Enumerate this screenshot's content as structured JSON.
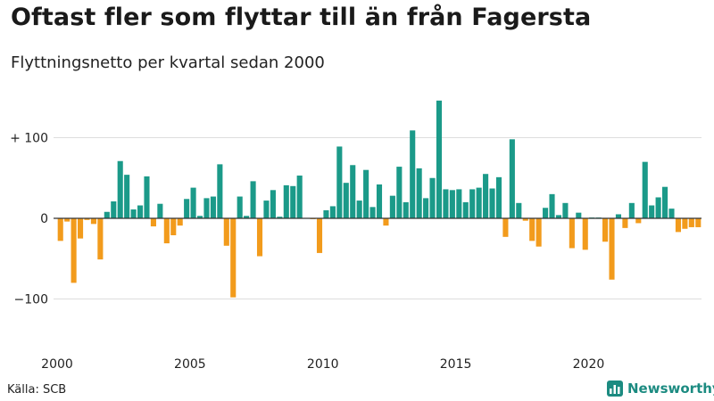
{
  "title": "Oftast fler som flyttar till än från Fagersta",
  "subtitle": "Flyttningsnetto per kvartal sedan 2000",
  "source": "Källa: SCB",
  "brand": "Newsworthy",
  "colors": {
    "positive": "#1b9a89",
    "negative": "#f29b1c",
    "grid": "#dddddd",
    "axis": "#333333"
  },
  "chart_data": {
    "type": "bar",
    "title": "Oftast fler som flyttar till än från Fagersta",
    "subtitle": "Flyttningsnetto per kvartal sedan 2000",
    "xlabel": "",
    "ylabel": "",
    "ylim": [
      -120,
      160
    ],
    "yticks": [
      -100,
      0,
      100
    ],
    "ytick_labels": [
      "−100",
      "0",
      "+ 100"
    ],
    "xticks": [
      "2000",
      "2005",
      "2010",
      "2015",
      "2020"
    ],
    "start_year": 2000,
    "period": "quarter",
    "values": [
      -28,
      -4,
      -80,
      -25,
      -2,
      -7,
      -51,
      8,
      21,
      71,
      54,
      11,
      16,
      52,
      -10,
      18,
      -31,
      -21,
      -9,
      24,
      38,
      3,
      25,
      27,
      67,
      -34,
      -98,
      27,
      3,
      46,
      -47,
      22,
      35,
      2,
      41,
      40,
      53,
      0,
      -1,
      -43,
      10,
      15,
      89,
      44,
      66,
      22,
      60,
      14,
      42,
      -9,
      28,
      64,
      20,
      109,
      62,
      25,
      50,
      146,
      36,
      35,
      36,
      20,
      36,
      38,
      55,
      37,
      51,
      -23,
      98,
      19,
      -3,
      -28,
      -35,
      13,
      30,
      4,
      19,
      -37,
      7,
      -39,
      1,
      1,
      -29,
      -76,
      5,
      -12,
      19,
      -6,
      70,
      16,
      26,
      39,
      12,
      -17,
      -13,
      -11,
      -11
    ]
  }
}
